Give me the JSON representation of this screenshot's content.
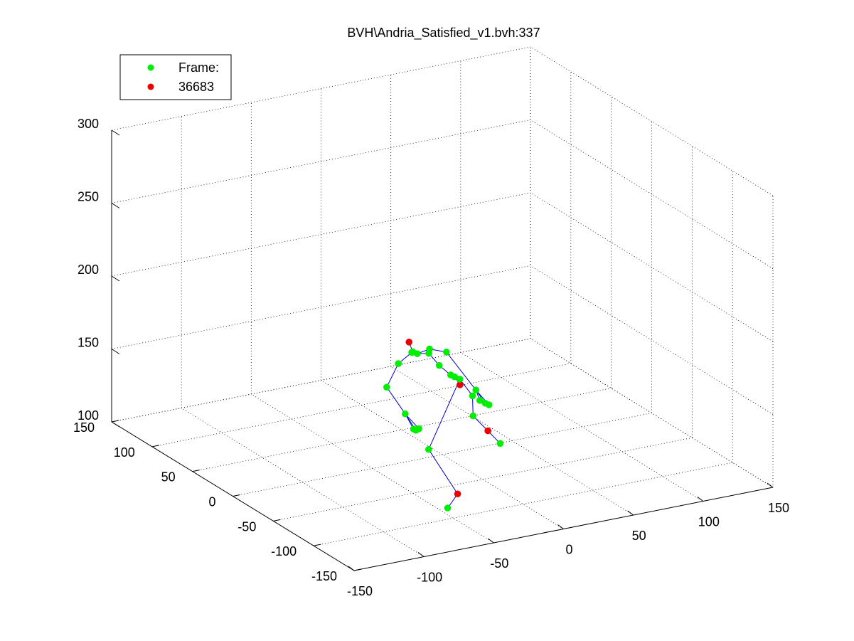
{
  "chart_data": {
    "type": "scatter",
    "title": "BVH\\Andria_Satisfied_v1.bvh:337",
    "legend": {
      "placement": "top-left",
      "entries": [
        {
          "label": "Frame:",
          "color": "#00ee00"
        },
        {
          "label": "36683",
          "color": "#ee0000"
        }
      ]
    },
    "axes": {
      "x": {
        "lim": [
          -150,
          150
        ],
        "ticks": [
          "-150",
          "-100",
          "-50",
          "0",
          "50",
          "100",
          "150"
        ]
      },
      "y": {
        "lim": [
          -150,
          150
        ],
        "ticks": [
          "-150",
          "-100",
          "-50",
          "0",
          "50",
          "100",
          "150"
        ]
      },
      "z": {
        "lim": [
          100,
          300
        ],
        "ticks": [
          "100",
          "150",
          "200",
          "250",
          "300"
        ]
      }
    },
    "grid": true,
    "colors": {
      "joint": "#00ee00",
      "highlight": "#ee0000",
      "bone": "#0000cc"
    },
    "joints": [
      {
        "id": "head",
        "x": 22.2,
        "y": 79.5,
        "z": 145.9,
        "highlight": true
      },
      {
        "id": "neck",
        "x": 22.4,
        "y": 75.3,
        "z": 140.7
      },
      {
        "id": "neck2",
        "x": 23.1,
        "y": 70.9,
        "z": 140.7
      },
      {
        "id": "shoulder_l",
        "x": 21.6,
        "y": 75.1,
        "z": 140.4
      },
      {
        "id": "elbow_l",
        "x": 8.1,
        "y": 68.4,
        "z": 137.6
      },
      {
        "id": "wrist_l",
        "x": -7.5,
        "y": 55.8,
        "z": 128.7
      },
      {
        "id": "hand_l",
        "x": -7.4,
        "y": 33.1,
        "z": 118.1
      },
      {
        "id": "fingers_l1",
        "x": -8.2,
        "y": 21.4,
        "z": 111.8
      },
      {
        "id": "fingers_l2",
        "x": -7.7,
        "y": 19.3,
        "z": 111.6
      },
      {
        "id": "fingers_l3",
        "x": -5.9,
        "y": 18.8,
        "z": 112.5
      },
      {
        "id": "chest",
        "x": 30.9,
        "y": 70.0,
        "z": 139.8
      },
      {
        "id": "shoulder_r",
        "x": 34.0,
        "y": 74.5,
        "z": 140.6
      },
      {
        "id": "elbow_r",
        "x": 48.7,
        "y": 79.0,
        "z": 134.2
      },
      {
        "id": "wrist_r",
        "x": 59.3,
        "y": 60.9,
        "z": 112.3
      },
      {
        "id": "hand_r1",
        "x": 57.6,
        "y": 53.0,
        "z": 108.2
      },
      {
        "id": "hand_r2",
        "x": 59.8,
        "y": 50.2,
        "z": 106.8
      },
      {
        "id": "hand_r3",
        "x": 61.6,
        "y": 48.6,
        "z": 105.9
      },
      {
        "id": "spine",
        "x": 34.7,
        "y": 63.7,
        "z": 132.9
      },
      {
        "id": "spine2",
        "x": 40.3,
        "y": 59.3,
        "z": 126.8
      },
      {
        "id": "hip_l",
        "x": 43.6,
        "y": 60.2,
        "z": 124.6
      },
      {
        "id": "hips",
        "x": 44.9,
        "y": 55.7,
        "z": 120.4,
        "highlight": true
      },
      {
        "id": "hip_r",
        "x": 46.0,
        "y": 57.7,
        "z": 123.4
      },
      {
        "id": "upleg_r",
        "x": 49.9,
        "y": 48.8,
        "z": 114.2
      },
      {
        "id": "knee_r",
        "x": 48.1,
        "y": 45.0,
        "z": 102.1
      },
      {
        "id": "ankle_r",
        "x": 57.9,
        "y": 43.6,
        "z": 90.5,
        "highlight": true
      },
      {
        "id": "toe_r",
        "x": 62.1,
        "y": 35.7,
        "z": 83.7
      },
      {
        "id": "knee_l",
        "x": 16.1,
        "y": 44.7,
        "z": 85.3
      },
      {
        "id": "ankle_l",
        "x": 22.1,
        "y": 19.2,
        "z": 62.3,
        "highlight": true
      },
      {
        "id": "toe_l",
        "x": 13.8,
        "y": 17.2,
        "z": 54.9
      }
    ],
    "bones": [
      [
        "head",
        "neck"
      ],
      [
        "neck",
        "neck2"
      ],
      [
        "neck",
        "shoulder_l"
      ],
      [
        "shoulder_l",
        "elbow_l"
      ],
      [
        "elbow_l",
        "wrist_l"
      ],
      [
        "wrist_l",
        "hand_l"
      ],
      [
        "hand_l",
        "fingers_l1"
      ],
      [
        "hand_l",
        "fingers_l2"
      ],
      [
        "hand_l",
        "fingers_l3"
      ],
      [
        "neck2",
        "chest"
      ],
      [
        "neck2",
        "shoulder_r"
      ],
      [
        "shoulder_r",
        "elbow_r"
      ],
      [
        "elbow_r",
        "wrist_r"
      ],
      [
        "wrist_r",
        "hand_r1"
      ],
      [
        "wrist_r",
        "hand_r2"
      ],
      [
        "wrist_r",
        "hand_r3"
      ],
      [
        "chest",
        "spine"
      ],
      [
        "spine",
        "spine2"
      ],
      [
        "spine2",
        "hip_l"
      ],
      [
        "hip_l",
        "hips"
      ],
      [
        "hips",
        "hip_r"
      ],
      [
        "hip_r",
        "upleg_r"
      ],
      [
        "upleg_r",
        "knee_r"
      ],
      [
        "knee_r",
        "ankle_r"
      ],
      [
        "ankle_r",
        "toe_r"
      ],
      [
        "hip_r",
        "knee_l"
      ],
      [
        "knee_l",
        "ankle_l"
      ],
      [
        "ankle_l",
        "toe_l"
      ]
    ]
  }
}
